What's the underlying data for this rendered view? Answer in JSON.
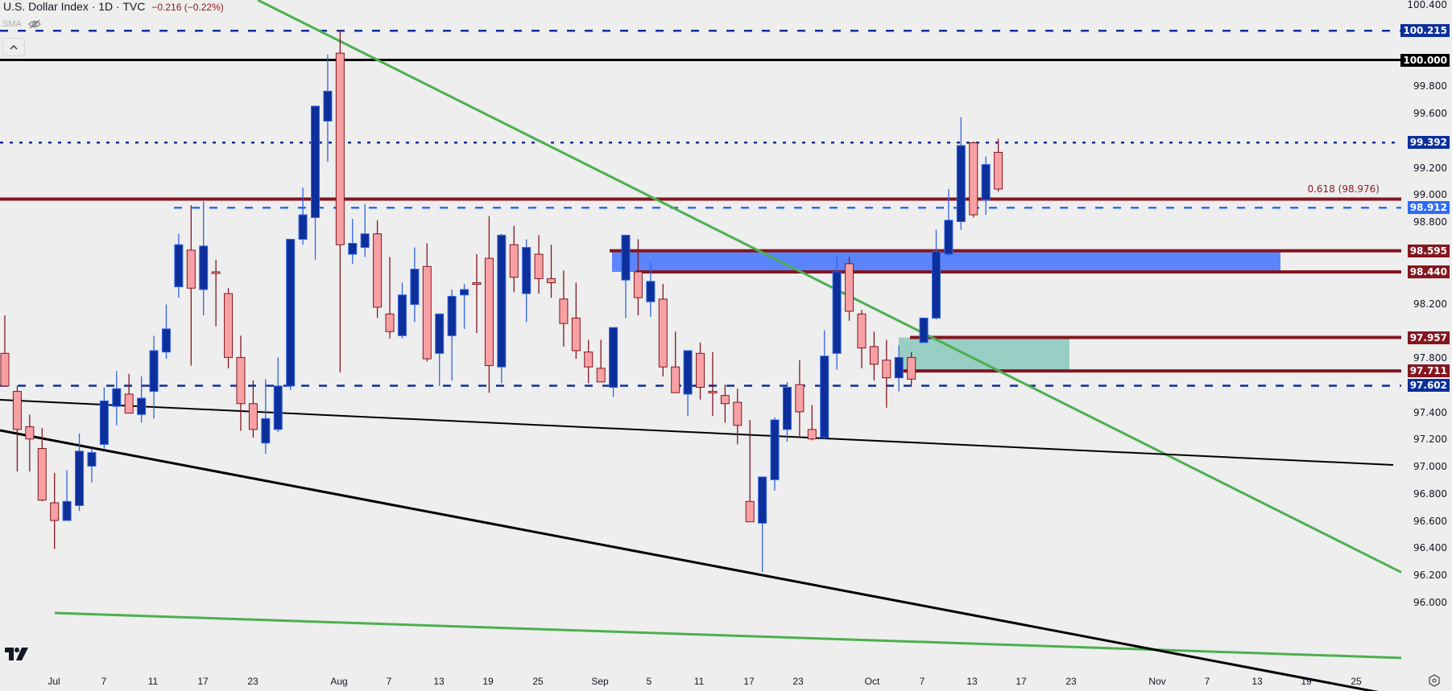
{
  "header": {
    "title": "U.S. Dollar Index · 1D · TVC",
    "change": "−0.216 (−0.22%)",
    "indicator": "SMA"
  },
  "colors": {
    "bull_body": "#0d2f9a",
    "bull_border": "#2f63e8",
    "bear_body": "#f7a1a4",
    "bear_border": "#84161f",
    "level_red": "#84161f",
    "dash_navy": "#0d2f9a",
    "dash_blue": "#2f6cf5",
    "trend_green": "#4caf50",
    "trend_black": "#000000",
    "zone_blue": "#5b85fc",
    "zone_teal": "#98cec4"
  },
  "price_axis": {
    "ticks": [
      "100.400",
      "99.800",
      "99.600",
      "99.200",
      "99.000",
      "98.800",
      "98.200",
      "97.800",
      "97.400",
      "97.200",
      "97.000",
      "96.800",
      "96.600",
      "96.400",
      "96.200",
      "96.000"
    ],
    "tags": [
      {
        "label": "100.215",
        "color": "#0d2f9a"
      },
      {
        "label": "100.000",
        "color": "#000000"
      },
      {
        "label": "99.392",
        "color": "#0d2f9a"
      },
      {
        "label": "98.912",
        "color": "#2f6cf5"
      },
      {
        "label": "98.595",
        "color": "#84161f"
      },
      {
        "label": "98.440",
        "color": "#84161f"
      },
      {
        "label": "97.957",
        "color": "#84161f"
      },
      {
        "label": "97.711",
        "color": "#84161f"
      },
      {
        "label": "97.602",
        "color": "#0d2f9a"
      }
    ]
  },
  "fib_label": "0.618 (98.976)",
  "time_axis": {
    "labels": [
      "Jul",
      "7",
      "11",
      "17",
      "23",
      "Aug",
      "7",
      "13",
      "19",
      "25",
      "Sep",
      "5",
      "11",
      "17",
      "23",
      "Oct",
      "7",
      "13",
      "17",
      "23",
      "Nov",
      "7",
      "13",
      "19",
      "25"
    ]
  },
  "chart_data": {
    "type": "candlestick",
    "title": "U.S. Dollar Index · 1D · TVC",
    "xlabel": "",
    "ylabel": "Price",
    "ylim": [
      96.0,
      100.4
    ],
    "grid": false,
    "x_axis_labels": [
      "Jul",
      "7",
      "11",
      "17",
      "23",
      "Aug",
      "7",
      "13",
      "19",
      "25",
      "Sep",
      "5",
      "11",
      "17",
      "23",
      "Oct",
      "7",
      "13",
      "17",
      "23",
      "Nov",
      "7",
      "13",
      "19",
      "25"
    ],
    "candles": [
      {
        "o": 97.84,
        "h": 98.12,
        "l": 97.65,
        "c": 97.6
      },
      {
        "o": 97.56,
        "h": 97.6,
        "l": 96.97,
        "c": 97.28
      },
      {
        "o": 97.3,
        "h": 97.39,
        "l": 96.97,
        "c": 97.21
      },
      {
        "o": 97.14,
        "h": 97.29,
        "l": 96.75,
        "c": 96.76
      },
      {
        "o": 96.74,
        "h": 96.96,
        "l": 96.4,
        "c": 96.61
      },
      {
        "o": 96.61,
        "h": 96.98,
        "l": 96.61,
        "c": 96.75
      },
      {
        "o": 96.72,
        "h": 97.25,
        "l": 96.68,
        "c": 97.12
      },
      {
        "o": 97.01,
        "h": 97.14,
        "l": 96.89,
        "c": 97.11
      },
      {
        "o": 97.17,
        "h": 97.59,
        "l": 97.14,
        "c": 97.49
      },
      {
        "o": 97.45,
        "h": 97.71,
        "l": 97.31,
        "c": 97.58
      },
      {
        "o": 97.54,
        "h": 97.69,
        "l": 97.45,
        "c": 97.4
      },
      {
        "o": 97.39,
        "h": 97.67,
        "l": 97.33,
        "c": 97.51
      },
      {
        "o": 97.56,
        "h": 97.97,
        "l": 97.36,
        "c": 97.86
      },
      {
        "o": 97.85,
        "h": 98.2,
        "l": 97.8,
        "c": 98.02
      },
      {
        "o": 98.33,
        "h": 98.72,
        "l": 98.25,
        "c": 98.64
      },
      {
        "o": 98.6,
        "h": 98.93,
        "l": 97.75,
        "c": 98.32
      },
      {
        "o": 98.31,
        "h": 98.96,
        "l": 98.12,
        "c": 98.63
      },
      {
        "o": 98.44,
        "h": 98.53,
        "l": 98.04,
        "c": 98.43
      },
      {
        "o": 98.28,
        "h": 98.32,
        "l": 97.73,
        "c": 97.81
      },
      {
        "o": 97.81,
        "h": 97.97,
        "l": 97.27,
        "c": 97.47
      },
      {
        "o": 97.47,
        "h": 97.64,
        "l": 97.22,
        "c": 97.28
      },
      {
        "o": 97.18,
        "h": 97.65,
        "l": 97.1,
        "c": 97.36
      },
      {
        "o": 97.28,
        "h": 97.81,
        "l": 97.26,
        "c": 97.6
      },
      {
        "o": 97.6,
        "h": 98.63,
        "l": 97.57,
        "c": 98.68
      },
      {
        "o": 98.68,
        "h": 99.06,
        "l": 98.64,
        "c": 98.86
      },
      {
        "o": 98.84,
        "h": 99.07,
        "l": 98.53,
        "c": 99.66
      },
      {
        "o": 99.55,
        "h": 100.04,
        "l": 99.25,
        "c": 99.77
      },
      {
        "o": 100.05,
        "h": 100.22,
        "l": 97.7,
        "c": 98.64
      },
      {
        "o": 98.57,
        "h": 98.83,
        "l": 98.5,
        "c": 98.65
      },
      {
        "o": 98.62,
        "h": 98.94,
        "l": 98.55,
        "c": 98.72
      },
      {
        "o": 98.72,
        "h": 98.82,
        "l": 98.1,
        "c": 98.18
      },
      {
        "o": 98.13,
        "h": 98.55,
        "l": 97.95,
        "c": 98.0
      },
      {
        "o": 97.97,
        "h": 98.36,
        "l": 97.95,
        "c": 98.27
      },
      {
        "o": 98.2,
        "h": 98.62,
        "l": 98.07,
        "c": 98.46
      },
      {
        "o": 98.48,
        "h": 98.65,
        "l": 97.78,
        "c": 97.8
      },
      {
        "o": 97.84,
        "h": 98.02,
        "l": 97.6,
        "c": 98.13
      },
      {
        "o": 97.97,
        "h": 98.31,
        "l": 97.64,
        "c": 98.26
      },
      {
        "o": 98.27,
        "h": 98.35,
        "l": 98.02,
        "c": 98.31
      },
      {
        "o": 98.36,
        "h": 98.57,
        "l": 97.99,
        "c": 98.35
      },
      {
        "o": 98.54,
        "h": 98.85,
        "l": 97.55,
        "c": 97.75
      },
      {
        "o": 97.74,
        "h": 98.72,
        "l": 97.62,
        "c": 98.71
      },
      {
        "o": 98.64,
        "h": 98.78,
        "l": 98.29,
        "c": 98.4
      },
      {
        "o": 98.28,
        "h": 98.68,
        "l": 98.07,
        "c": 98.62
      },
      {
        "o": 98.57,
        "h": 98.71,
        "l": 98.28,
        "c": 98.39
      },
      {
        "o": 98.39,
        "h": 98.64,
        "l": 98.25,
        "c": 98.36
      },
      {
        "o": 98.24,
        "h": 98.45,
        "l": 97.89,
        "c": 98.06
      },
      {
        "o": 98.1,
        "h": 98.36,
        "l": 97.8,
        "c": 97.86
      },
      {
        "o": 97.85,
        "h": 97.94,
        "l": 97.62,
        "c": 97.74
      },
      {
        "o": 97.73,
        "h": 97.94,
        "l": 97.64,
        "c": 97.63
      },
      {
        "o": 97.59,
        "h": 97.74,
        "l": 97.52,
        "c": 98.03
      },
      {
        "o": 98.38,
        "h": 98.5,
        "l": 98.1,
        "c": 98.71
      },
      {
        "o": 98.44,
        "h": 98.68,
        "l": 98.12,
        "c": 98.25
      },
      {
        "o": 98.22,
        "h": 98.51,
        "l": 98.11,
        "c": 98.37
      },
      {
        "o": 98.24,
        "h": 98.35,
        "l": 97.67,
        "c": 97.74
      },
      {
        "o": 97.74,
        "h": 98.0,
        "l": 97.59,
        "c": 97.55
      },
      {
        "o": 97.54,
        "h": 97.82,
        "l": 97.38,
        "c": 97.86
      },
      {
        "o": 97.84,
        "h": 97.92,
        "l": 97.5,
        "c": 97.59
      },
      {
        "o": 97.56,
        "h": 97.85,
        "l": 97.38,
        "c": 97.55
      },
      {
        "o": 97.53,
        "h": 97.61,
        "l": 97.33,
        "c": 97.47
      },
      {
        "o": 97.48,
        "h": 97.58,
        "l": 97.17,
        "c": 97.31
      },
      {
        "o": 96.75,
        "h": 97.35,
        "l": 96.65,
        "c": 96.6
      },
      {
        "o": 96.59,
        "h": 96.89,
        "l": 96.23,
        "c": 96.93
      },
      {
        "o": 96.91,
        "h": 97.37,
        "l": 96.83,
        "c": 97.35
      },
      {
        "o": 97.28,
        "h": 97.63,
        "l": 97.19,
        "c": 97.59
      },
      {
        "o": 97.61,
        "h": 97.79,
        "l": 97.22,
        "c": 97.41
      },
      {
        "o": 97.28,
        "h": 97.46,
        "l": 97.2,
        "c": 97.21
      },
      {
        "o": 97.22,
        "h": 98.01,
        "l": 97.21,
        "c": 97.82
      },
      {
        "o": 97.84,
        "h": 98.56,
        "l": 97.72,
        "c": 98.44
      },
      {
        "o": 98.5,
        "h": 98.55,
        "l": 98.08,
        "c": 98.15
      },
      {
        "o": 98.13,
        "h": 98.16,
        "l": 97.73,
        "c": 97.88
      },
      {
        "o": 97.89,
        "h": 98.0,
        "l": 97.64,
        "c": 97.76
      },
      {
        "o": 97.79,
        "h": 97.94,
        "l": 97.44,
        "c": 97.66
      },
      {
        "o": 97.66,
        "h": 97.9,
        "l": 97.56,
        "c": 97.81
      },
      {
        "o": 97.81,
        "h": 97.85,
        "l": 97.6,
        "c": 97.65
      },
      {
        "o": 97.92,
        "h": 98.06,
        "l": 97.92,
        "c": 98.1
      },
      {
        "o": 98.1,
        "h": 98.75,
        "l": 98.09,
        "c": 98.59
      },
      {
        "o": 98.57,
        "h": 99.05,
        "l": 98.55,
        "c": 98.82
      },
      {
        "o": 98.81,
        "h": 99.58,
        "l": 98.75,
        "c": 99.37
      },
      {
        "o": 99.39,
        "h": 99.4,
        "l": 98.84,
        "c": 98.86
      },
      {
        "o": 98.97,
        "h": 99.29,
        "l": 98.86,
        "c": 99.23
      },
      {
        "o": 99.32,
        "h": 99.42,
        "l": 99.03,
        "c": 99.05
      }
    ],
    "horizontal_levels": [
      {
        "price": 100.215,
        "style": "dashed",
        "color": "#0d2f9a"
      },
      {
        "price": 100.0,
        "style": "solid",
        "color": "#000000"
      },
      {
        "price": 99.392,
        "style": "dotted",
        "color": "#0d2f9a"
      },
      {
        "price": 98.976,
        "style": "solid",
        "color": "#84161f",
        "label": "0.618 (98.976)"
      },
      {
        "price": 98.912,
        "style": "dashed",
        "color": "#2f6cf5"
      },
      {
        "price": 98.595,
        "style": "solid",
        "color": "#84161f"
      },
      {
        "price": 98.44,
        "style": "solid",
        "color": "#84161f"
      },
      {
        "price": 97.957,
        "style": "solid",
        "color": "#84161f"
      },
      {
        "price": 97.711,
        "style": "solid",
        "color": "#84161f"
      },
      {
        "price": 97.602,
        "style": "dashed",
        "color": "#0d2f9a"
      }
    ],
    "zones": [
      {
        "from": 98.44,
        "to": 98.595,
        "color": "#5b85fc"
      },
      {
        "from": 97.711,
        "to": 97.957,
        "color": "#98cec4"
      }
    ],
    "trendlines": [
      {
        "color": "#4caf50",
        "from": [
          320,
          0
        ],
        "to": [
          1803,
          743
        ]
      },
      {
        "color": "#4caf50",
        "from": [
          68,
          762
        ],
        "to": [
          1803,
          820
        ]
      },
      {
        "color": "#000000",
        "from": [
          0,
          497
        ],
        "to": [
          1730,
          578
        ]
      },
      {
        "color": "#000000",
        "from": [
          0,
          535
        ],
        "to": [
          1730,
          864
        ]
      }
    ]
  }
}
